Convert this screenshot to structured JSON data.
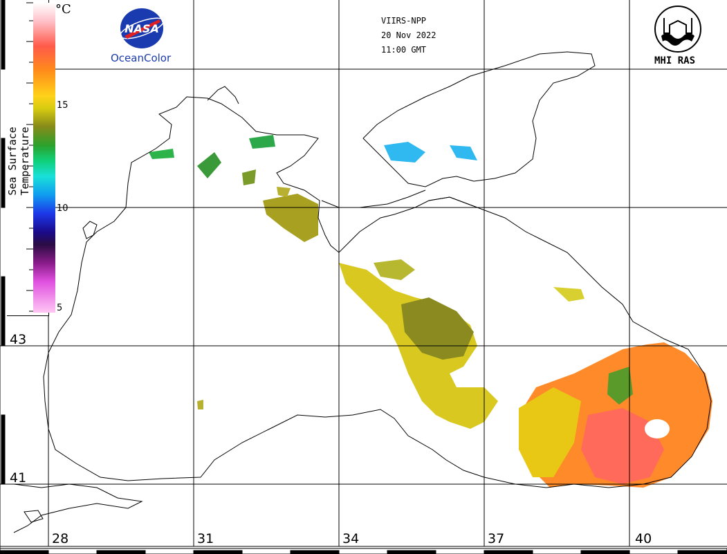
{
  "header": {
    "satellite": "VIIRS-NPP",
    "date": "20 Nov 2022",
    "time": "11:00 GMT"
  },
  "logos": {
    "nasa_text": "NASA",
    "oceancolor": "OceanColor",
    "mhi": "MHI RAS"
  },
  "legend": {
    "title": "Sea Surface Temperature",
    "unit": "°C",
    "ticks": [
      "15",
      "10",
      "5"
    ]
  },
  "latitudes": [
    "43",
    "41"
  ],
  "longitudes": [
    "28",
    "31",
    "34",
    "37",
    "40"
  ],
  "colors": {
    "warm": "#ff7a2a",
    "mid": "#d8cc10",
    "cool": "#2ca12c",
    "cold": "#30b8f0"
  }
}
